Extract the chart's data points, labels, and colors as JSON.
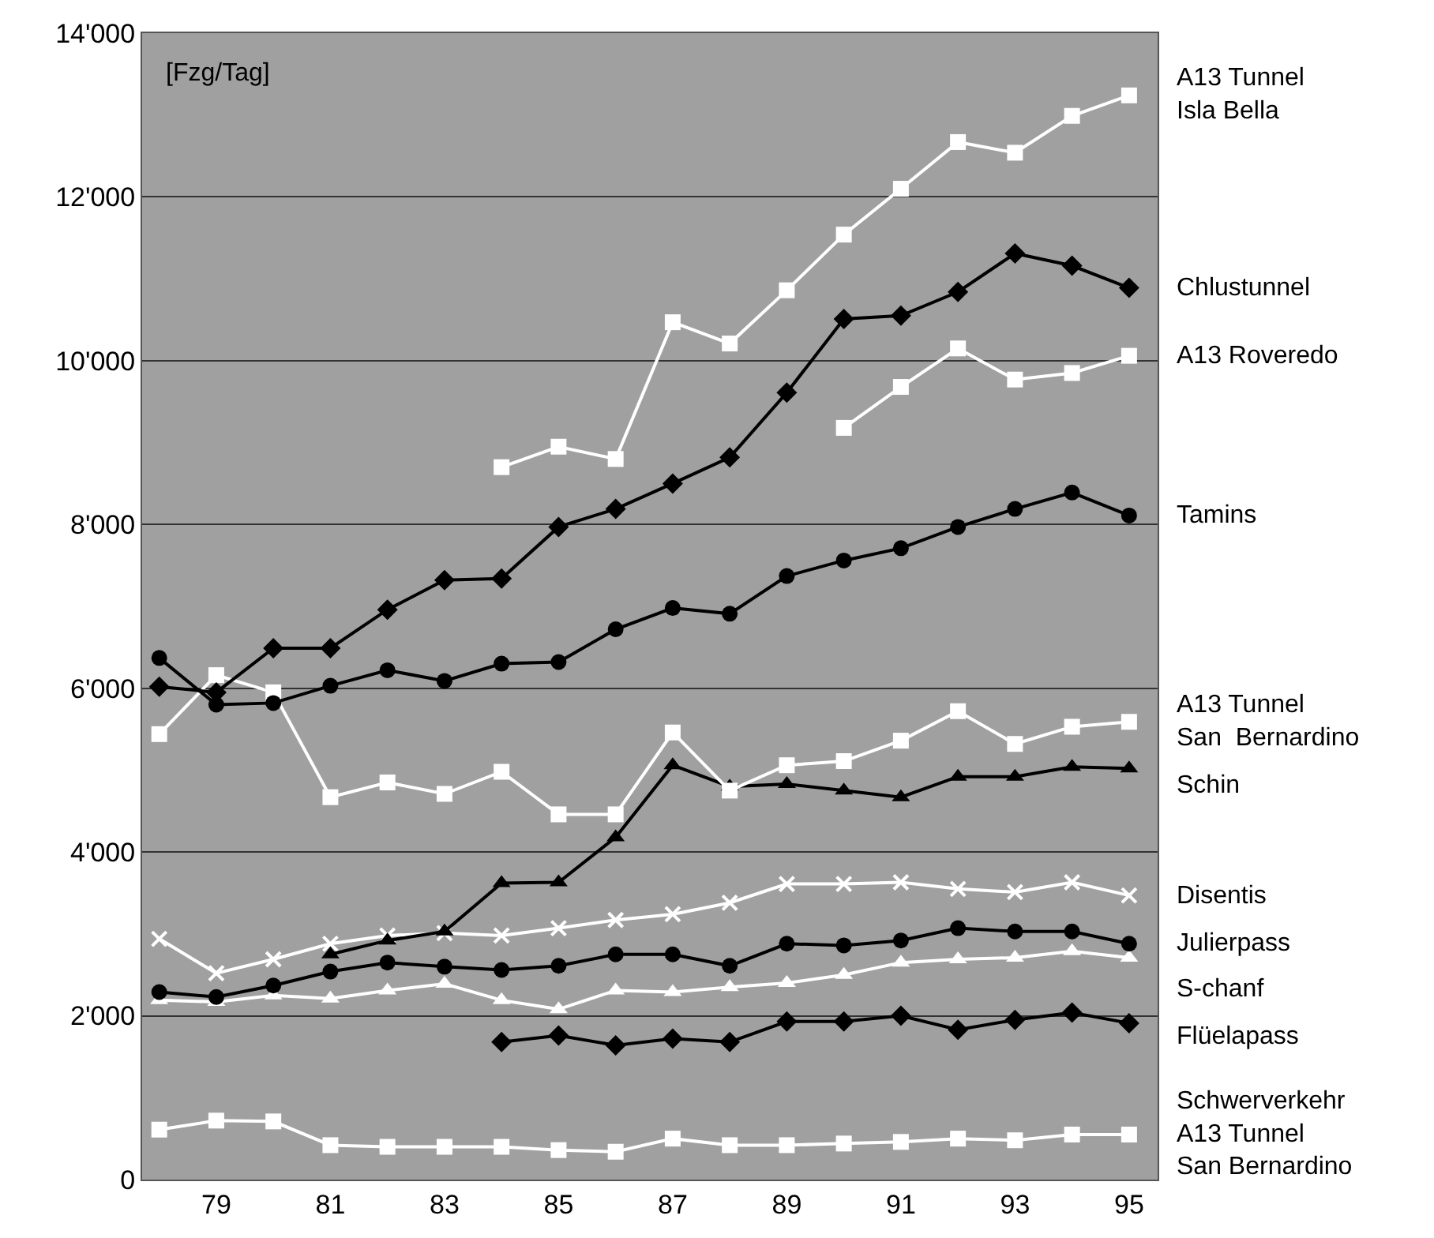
{
  "chart_data": {
    "type": "line",
    "x": [
      78,
      79,
      80,
      81,
      82,
      83,
      84,
      85,
      86,
      87,
      88,
      89,
      90,
      91,
      92,
      93,
      94,
      95
    ],
    "xlim": [
      77.7,
      95.5
    ],
    "xticks": [
      79,
      81,
      83,
      85,
      87,
      89,
      91,
      93,
      95
    ],
    "ylim": [
      0,
      14000
    ],
    "yticks": [
      {
        "value": 0,
        "label": "0"
      },
      {
        "value": 2000,
        "label": "2'000"
      },
      {
        "value": 4000,
        "label": "4'000"
      },
      {
        "value": 6000,
        "label": "6'000"
      },
      {
        "value": 8000,
        "label": "8'000"
      },
      {
        "value": 10000,
        "label": "10'000"
      },
      {
        "value": 12000,
        "label": "12'000"
      },
      {
        "value": 14000,
        "label": "14'000"
      }
    ],
    "grid": "y",
    "legend": false,
    "line_style": "solid",
    "annotations": [
      "[Fzg/Tag]"
    ],
    "series": [
      {
        "name": "A13 Tunnel\nIsla Bella",
        "color": "#ffffff",
        "marker": "square",
        "values": [
          null,
          null,
          null,
          null,
          null,
          null,
          8700,
          8950,
          8800,
          10470,
          10210,
          10860,
          11540,
          12100,
          12670,
          12540,
          12990,
          13240
        ]
      },
      {
        "name": "Chlustunnel",
        "color": "#000000",
        "marker": "diamond",
        "values": [
          6020,
          5950,
          6490,
          6490,
          6960,
          7320,
          7340,
          7970,
          8190,
          8500,
          8820,
          9610,
          10510,
          10550,
          10840,
          11310,
          11160,
          10890
        ]
      },
      {
        "name": "A13 Roveredo",
        "color": "#ffffff",
        "marker": "square",
        "values": [
          null,
          null,
          null,
          null,
          null,
          null,
          null,
          null,
          null,
          null,
          null,
          null,
          9180,
          9680,
          10150,
          9770,
          9850,
          10060
        ]
      },
      {
        "name": "Tamins",
        "color": "#000000",
        "marker": "circle",
        "values": [
          6370,
          5800,
          5820,
          6030,
          6220,
          6090,
          6300,
          6320,
          6720,
          6980,
          6910,
          7370,
          7560,
          7710,
          7970,
          8190,
          8390,
          8110
        ]
      },
      {
        "name": "A13 Tunnel\nSan  Bernardino",
        "color": "#ffffff",
        "marker": "square",
        "values": [
          5440,
          6160,
          5950,
          4670,
          4850,
          4710,
          4980,
          4460,
          4460,
          5460,
          4750,
          5060,
          5110,
          5360,
          5720,
          5320,
          5530,
          5590
        ]
      },
      {
        "name": "Schin",
        "color": "#000000",
        "marker": "triangle",
        "values": [
          null,
          null,
          null,
          2750,
          2920,
          3030,
          3620,
          3630,
          4180,
          5060,
          4800,
          4830,
          4750,
          4670,
          4920,
          4920,
          5040,
          5020
        ]
      },
      {
        "name": "Disentis",
        "color": "#ffffff",
        "marker": "cross",
        "values": [
          2940,
          2520,
          2690,
          2880,
          2980,
          3010,
          2980,
          3070,
          3170,
          3240,
          3380,
          3610,
          3610,
          3630,
          3550,
          3510,
          3630,
          3470
        ]
      },
      {
        "name": "Julierpass",
        "color": "#000000",
        "marker": "circle",
        "values": [
          2290,
          2230,
          2370,
          2540,
          2650,
          2600,
          2560,
          2610,
          2750,
          2750,
          2610,
          2880,
          2860,
          2920,
          3070,
          3030,
          3030,
          2880
        ]
      },
      {
        "name": "S-chanf",
        "color": "#ffffff",
        "marker": "triangle",
        "values": [
          2190,
          2170,
          2250,
          2210,
          2310,
          2390,
          2190,
          2080,
          2310,
          2290,
          2350,
          2400,
          2500,
          2650,
          2690,
          2710,
          2790,
          2710
        ]
      },
      {
        "name": "Flüelapass",
        "color": "#000000",
        "marker": "diamond",
        "values": [
          null,
          null,
          null,
          null,
          null,
          null,
          1680,
          1760,
          1640,
          1720,
          1680,
          1930,
          1930,
          2000,
          1830,
          1950,
          2040,
          1910
        ]
      },
      {
        "name": "Schwerverkehr\nA13 Tunnel\nSan Bernardino",
        "color": "#ffffff",
        "marker": "square",
        "values": [
          610,
          720,
          710,
          420,
          400,
          400,
          400,
          360,
          340,
          500,
          420,
          420,
          440,
          460,
          500,
          480,
          550,
          550
        ]
      }
    ]
  }
}
